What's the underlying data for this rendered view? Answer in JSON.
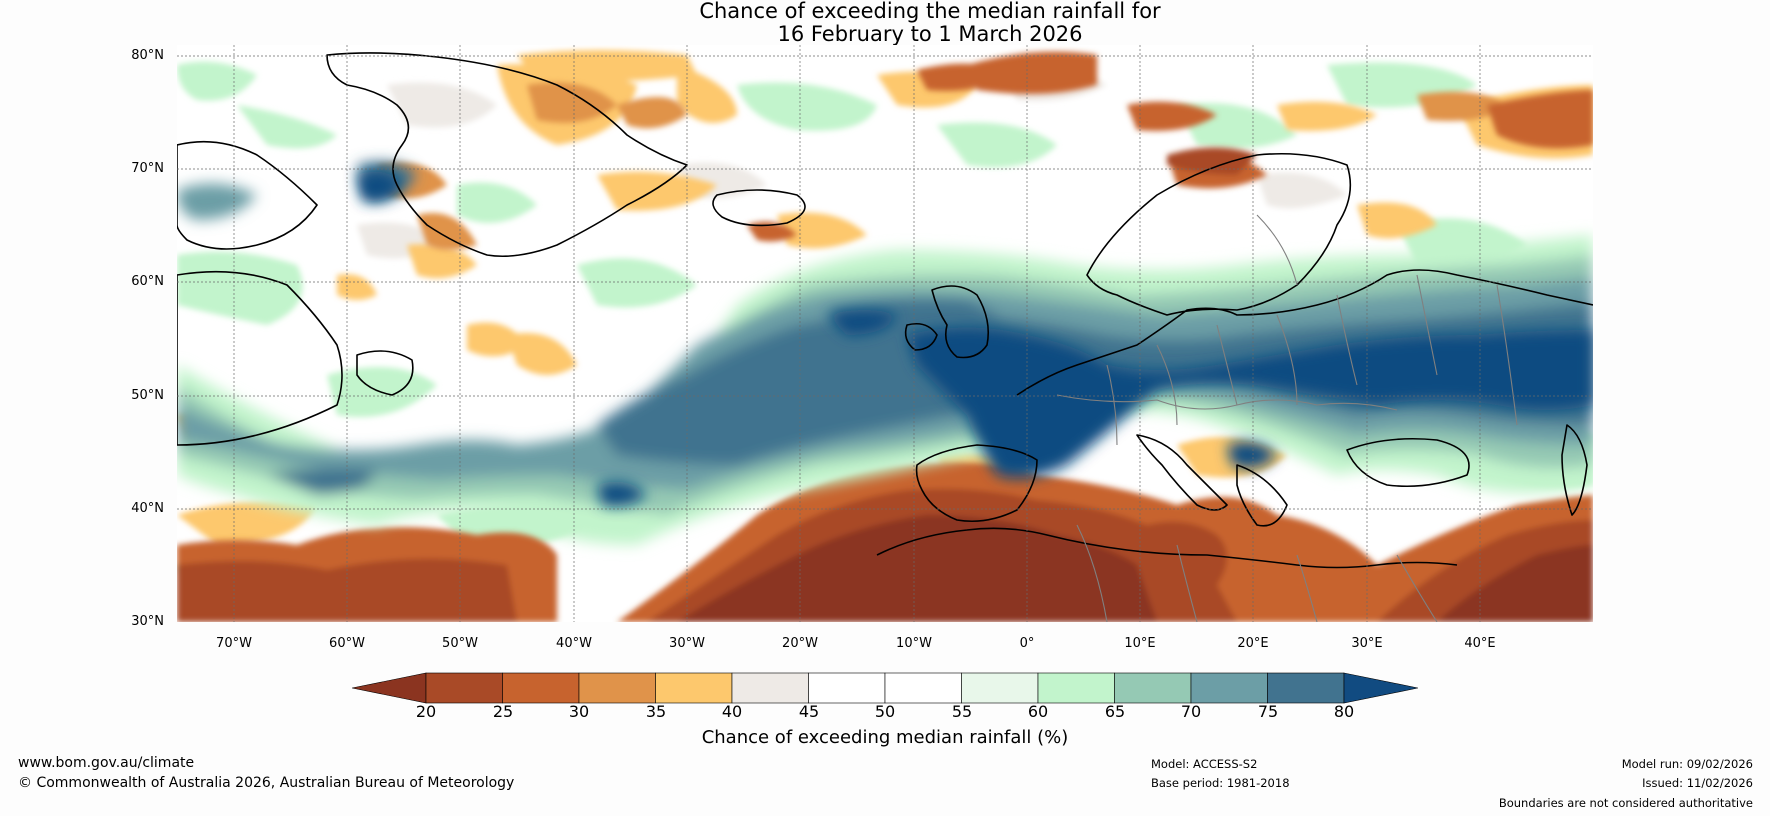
{
  "title": {
    "line1": "Chance of exceeding the median rainfall for",
    "line2": "16 February to 1 March 2026"
  },
  "map": {
    "lat_labels": [
      "80°N",
      "70°N",
      "60°N",
      "50°N",
      "40°N",
      "30°N"
    ],
    "lon_labels": [
      "70°W",
      "60°W",
      "50°W",
      "40°W",
      "30°W",
      "20°W",
      "10°W",
      "0°",
      "10°E",
      "20°E",
      "30°E",
      "40°E"
    ],
    "lat_range": [
      30,
      81
    ],
    "lon_range": [
      -75,
      50
    ]
  },
  "colorbar": {
    "ticks": [
      "20",
      "25",
      "30",
      "35",
      "40",
      "45",
      "50",
      "55",
      "60",
      "65",
      "70",
      "75",
      "80"
    ],
    "colors": [
      "#8b3420",
      "#a94a27",
      "#c7632e",
      "#e0934a",
      "#fdc86d",
      "#eeeae6",
      "#ffffff",
      "#ffffff",
      "#e8f7ea",
      "#c2f4cc",
      "#95c9b4",
      "#6c9ea6",
      "#41738f",
      "#114b81"
    ],
    "label": "Chance of exceeding median rainfall (%)"
  },
  "footer": {
    "website": "www.bom.gov.au/climate",
    "copyright": "© Commonwealth of Australia 2026, Australian Bureau of Meteorology",
    "model": "Model: ACCESS-S2",
    "base_period": "Base period: 1981-2018",
    "model_run": "Model run: 09/02/2026",
    "issued": "Issued: 11/02/2026",
    "disclaimer": "Boundaries are not considered authoritative"
  }
}
